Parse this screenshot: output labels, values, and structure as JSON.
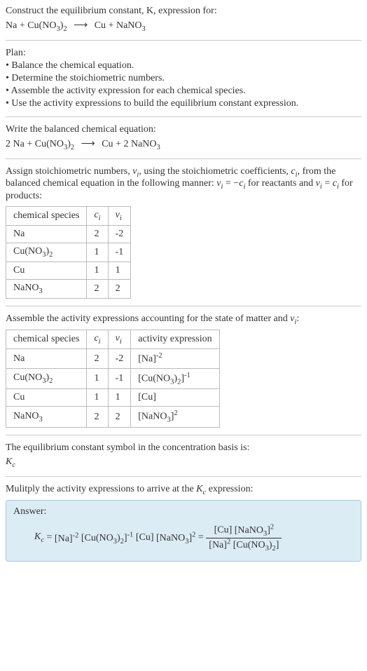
{
  "intro": {
    "l1": "Construct the equilibrium constant, K, expression for:"
  },
  "plan": {
    "title": "Plan:",
    "b1": "• Balance the chemical equation.",
    "b2": "• Determine the stoichiometric numbers.",
    "b3": "• Assemble the activity expression for each chemical species.",
    "b4": "• Use the activity expressions to build the equilibrium constant expression."
  },
  "balanced_label": "Write the balanced chemical equation:",
  "stoich": {
    "p1a": "Assign stoichiometric numbers, ",
    "p1b": ", using the stoichiometric coefficients, ",
    "p1c": ", from the balanced chemical equation in the following manner: ",
    "p1d": " for reactants and ",
    "p1e": " for products:"
  },
  "table1": {
    "h0": "chemical species",
    "r0": {
      "s": "Na",
      "c": "2",
      "v": "-2"
    },
    "r2": {
      "s": "Cu",
      "c": "1",
      "v": "1"
    }
  },
  "activity_label_a": "Assemble the activity expressions accounting for the state of matter and ",
  "activity_label_b": ":",
  "table2": {
    "h0": "chemical species",
    "h3": "activity expression",
    "r0": {
      "s": "Na",
      "c": "2",
      "v": "-2"
    },
    "r2": {
      "s": "Cu",
      "c": "1",
      "v": "1",
      "a": "[Cu]"
    }
  },
  "kc_label": "The equilibrium constant symbol in the concentration basis is:",
  "mult_label_a": "Mulitply the activity expressions to arrive at the ",
  "mult_label_b": " expression:",
  "answer_label": "Answer:",
  "colors": {
    "text": "#333333",
    "rule": "#cccccc",
    "tbl_border": "#bbbbbb",
    "answer_bg": "#dcecf5",
    "answer_border": "#a7c7db"
  },
  "font": {
    "family": "Georgia",
    "size_pt": 11
  },
  "eq1": {
    "na": "Na",
    "plus": " + ",
    "cu_no3_2_a": "Cu(NO",
    "cu_no3_2_b": ")",
    "sub3": "3",
    "sub2": "2",
    "cu": "Cu",
    "nano3_a": "NaNO"
  },
  "eq2": {
    "two": "2 ",
    "twoNa": "2 Na",
    "twoNaNO3": "2 NaNO"
  },
  "symbols": {
    "vi": "ν",
    "i": "i",
    "ci": "c",
    "Kc_K": "K",
    "Kc_c": "c",
    "eq": " = ",
    "neg": "−",
    "K": "K"
  },
  "table_vals": {
    "cu_no3_2_c": "1",
    "cu_no3_2_v": "-1",
    "nano3_c": "2",
    "nano3_v": "2"
  },
  "act": {
    "na_pre": "[Na]",
    "na_exp": "-2",
    "cuno32_pre": "[Cu(NO",
    "cuno32_mid": ")",
    "cuno32_post": "]",
    "cuno32_exp": "-1",
    "nano3_pre": "[NaNO",
    "nano3_post": "]",
    "nano3_exp": "2"
  }
}
